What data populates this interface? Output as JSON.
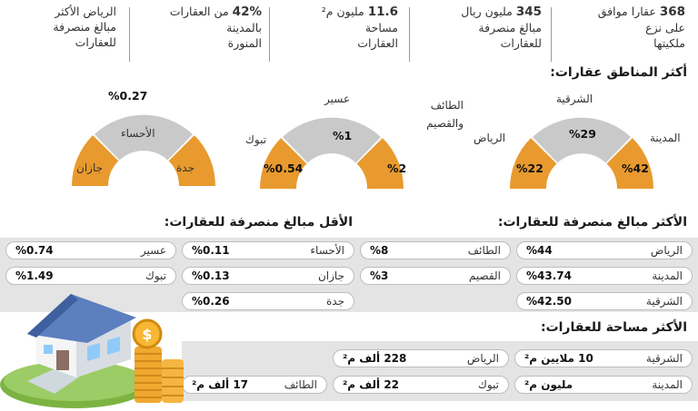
{
  "stats": [
    {
      "value": "368",
      "lines": [
        "عقارا موافق",
        "على نزع",
        "ملكيتها"
      ]
    },
    {
      "value": "345",
      "lines": [
        "مليون ريال",
        "مبالغ منصرفة",
        "للعقارات"
      ]
    },
    {
      "value": "11.6",
      "lines": [
        "مليون م²",
        "مساحة",
        "العقارات"
      ]
    },
    {
      "value": "42%",
      "lines": [
        "من العقارات",
        "بالمدينة",
        "المنورة"
      ]
    },
    {
      "value": "",
      "lines": [
        "الرياض الأكثر",
        "مبالغ منصرفة",
        "للعقارات"
      ]
    }
  ],
  "headers": {
    "top_regions": "أكثر المناطق عقارات:",
    "most_paid": "الأكثر مبالغ منصرفة للعقارات:",
    "least_paid": "الأقل مبالغ منصرفة للعقارات:",
    "largest_area": "الأكثر مساحة للعقارات:"
  },
  "gauges": [
    {
      "left": {
        "label": "الرياض",
        "value": "%22"
      },
      "top": {
        "label": "الشرقية",
        "value": "%29"
      },
      "right": {
        "label": "المدينة",
        "value": "%42"
      }
    },
    {
      "left": {
        "label": "تبوك",
        "value": "%0.54"
      },
      "top": {
        "label": "عسير",
        "value": "%1"
      },
      "right": {
        "label": "الطائف والقصيم",
        "value": "%2"
      }
    },
    {
      "left": {
        "label": "جازان",
        "value": ""
      },
      "top": {
        "label": "الأحساء",
        "value": "%0.27"
      },
      "right": {
        "label": "جدة",
        "value": ""
      }
    }
  ],
  "colors": {
    "gauge_orange": "#e89a2e",
    "gauge_gray": "#c9c9c9",
    "band_gray": "#e4e4e4"
  },
  "most_paid": [
    {
      "name": "الرياض",
      "value": "%44"
    },
    {
      "name": "المدينة",
      "value": "%43.74"
    },
    {
      "name": "الشرقية",
      "value": "%42.50"
    }
  ],
  "mid_paid": [
    {
      "name": "الطائف",
      "value": "%8"
    },
    {
      "name": "القصيم",
      "value": "%3"
    }
  ],
  "least_paid": [
    {
      "name": "الأحساء",
      "value": "%0.11"
    },
    {
      "name": "عسير",
      "value": "%0.74"
    },
    {
      "name": "جازان",
      "value": "%0.13"
    },
    {
      "name": "تبوك",
      "value": "%1.49"
    },
    {
      "name": "جدة",
      "value": "%0.26"
    }
  ],
  "area": [
    {
      "name": "الشرقية",
      "value": "10 ملايين م²"
    },
    {
      "name": "الرياض",
      "value": "228 ألف م²"
    },
    {
      "name": "المدينة",
      "value": "مليون م²"
    },
    {
      "name": "تبوك",
      "value": "22 ألف م²"
    },
    {
      "name": "الطائف",
      "value": "17 ألف م²"
    }
  ],
  "illustration": {
    "coin_symbol": "$"
  }
}
